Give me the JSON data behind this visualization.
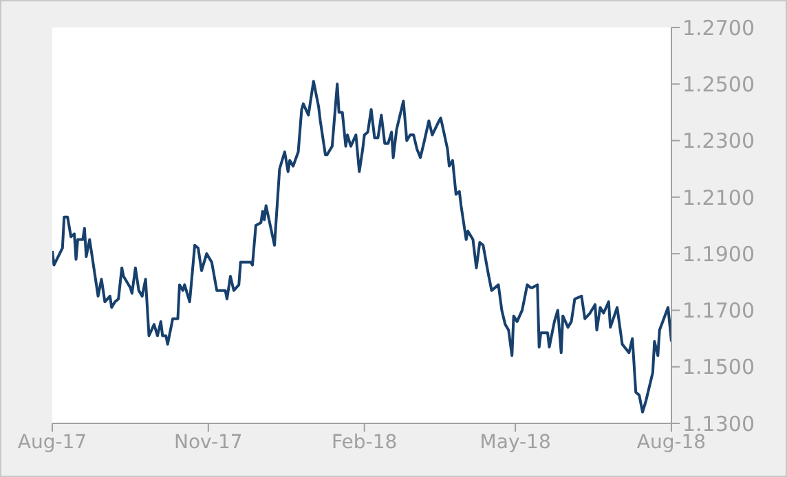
{
  "chart_data": {
    "type": "line",
    "x": [
      "2017-08-01",
      "2017-08-02",
      "2017-08-07",
      "2017-08-08",
      "2017-08-10",
      "2017-08-12",
      "2017-08-14",
      "2017-08-15",
      "2017-08-16",
      "2017-08-19",
      "2017-08-20",
      "2017-08-21",
      "2017-08-23",
      "2017-08-28",
      "2017-08-30",
      "2017-09-01",
      "2017-09-04",
      "2017-09-05",
      "2017-09-07",
      "2017-09-09",
      "2017-09-11",
      "2017-09-12",
      "2017-09-16",
      "2017-09-17",
      "2017-09-19",
      "2017-09-21",
      "2017-09-23",
      "2017-09-25",
      "2017-09-27",
      "2017-09-30",
      "2017-10-02",
      "2017-10-04",
      "2017-10-05",
      "2017-10-07",
      "2017-10-08",
      "2017-10-11",
      "2017-10-14",
      "2017-10-15",
      "2017-10-17",
      "2017-10-18",
      "2017-10-21",
      "2017-10-24",
      "2017-10-26",
      "2017-10-28",
      "2017-10-31",
      "2017-11-03",
      "2017-11-06",
      "2017-11-11",
      "2017-11-12",
      "2017-11-14",
      "2017-11-16",
      "2017-11-19",
      "2017-11-20",
      "2017-11-24",
      "2017-11-26",
      "2017-11-27",
      "2017-11-29",
      "2017-12-02",
      "2017-12-03",
      "2017-12-04",
      "2017-12-05",
      "2017-12-10",
      "2017-12-13",
      "2017-12-16",
      "2017-12-18",
      "2017-12-19",
      "2017-12-21",
      "2017-12-24",
      "2017-12-26",
      "2017-12-27",
      "2017-12-30",
      "2018-01-02",
      "2018-01-05",
      "2018-01-06",
      "2018-01-09",
      "2018-01-10",
      "2018-01-13",
      "2018-01-16",
      "2018-01-17",
      "2018-01-19",
      "2018-01-21",
      "2018-01-22",
      "2018-01-24",
      "2018-01-27",
      "2018-01-29",
      "2018-01-31",
      "2018-02-01",
      "2018-02-03",
      "2018-02-05",
      "2018-02-07",
      "2018-02-09",
      "2018-02-11",
      "2018-02-13",
      "2018-02-15",
      "2018-02-17",
      "2018-02-18",
      "2018-02-20",
      "2018-02-24",
      "2018-02-26",
      "2018-02-28",
      "2018-03-02",
      "2018-03-04",
      "2018-03-06",
      "2018-03-08",
      "2018-03-11",
      "2018-03-13",
      "2018-03-17",
      "2018-03-18",
      "2018-03-22",
      "2018-03-23",
      "2018-03-25",
      "2018-03-27",
      "2018-03-29",
      "2018-03-30",
      "2018-04-02",
      "2018-04-03",
      "2018-04-06",
      "2018-04-08",
      "2018-04-10",
      "2018-04-12",
      "2018-04-15",
      "2018-04-17",
      "2018-04-21",
      "2018-04-23",
      "2018-04-25",
      "2018-04-27",
      "2018-04-29",
      "2018-04-30",
      "2018-05-02",
      "2018-05-05",
      "2018-05-08",
      "2018-05-10",
      "2018-05-11",
      "2018-05-14",
      "2018-05-15",
      "2018-05-16",
      "2018-05-20",
      "2018-05-21",
      "2018-05-24",
      "2018-05-26",
      "2018-05-28",
      "2018-05-29",
      "2018-06-01",
      "2018-06-03",
      "2018-06-05",
      "2018-06-09",
      "2018-06-11",
      "2018-06-14",
      "2018-06-17",
      "2018-06-18",
      "2018-06-20",
      "2018-06-22",
      "2018-06-25",
      "2018-06-26",
      "2018-06-30",
      "2018-07-03",
      "2018-07-07",
      "2018-07-09",
      "2018-07-11",
      "2018-07-13",
      "2018-07-15",
      "2018-07-17",
      "2018-07-19",
      "2018-07-21",
      "2018-07-22",
      "2018-07-24",
      "2018-07-25",
      "2018-07-30",
      "2018-08-01"
    ],
    "series": [
      {
        "color": "#17406d",
        "values": [
          1.191,
          1.186,
          1.192,
          1.203,
          1.203,
          1.196,
          1.197,
          1.188,
          1.195,
          1.195,
          1.199,
          1.189,
          1.195,
          1.175,
          1.181,
          1.173,
          1.175,
          1.171,
          1.173,
          1.174,
          1.185,
          1.182,
          1.178,
          1.176,
          1.185,
          1.177,
          1.175,
          1.181,
          1.161,
          1.165,
          1.161,
          1.166,
          1.161,
          1.161,
          1.158,
          1.167,
          1.167,
          1.179,
          1.177,
          1.179,
          1.173,
          1.193,
          1.192,
          1.184,
          1.19,
          1.187,
          1.177,
          1.177,
          1.174,
          1.182,
          1.177,
          1.179,
          1.187,
          1.187,
          1.187,
          1.186,
          1.2,
          1.201,
          1.205,
          1.202,
          1.207,
          1.193,
          1.22,
          1.226,
          1.219,
          1.223,
          1.221,
          1.226,
          1.241,
          1.243,
          1.239,
          1.251,
          1.242,
          1.237,
          1.225,
          1.225,
          1.228,
          1.25,
          1.24,
          1.24,
          1.228,
          1.232,
          1.228,
          1.232,
          1.219,
          1.227,
          1.232,
          1.233,
          1.241,
          1.231,
          1.231,
          1.239,
          1.229,
          1.229,
          1.233,
          1.224,
          1.234,
          1.244,
          1.23,
          1.232,
          1.232,
          1.227,
          1.224,
          1.229,
          1.237,
          1.232,
          1.237,
          1.238,
          1.227,
          1.221,
          1.223,
          1.211,
          1.212,
          1.207,
          1.195,
          1.198,
          1.195,
          1.185,
          1.194,
          1.193,
          1.183,
          1.177,
          1.179,
          1.17,
          1.165,
          1.163,
          1.154,
          1.168,
          1.166,
          1.17,
          1.179,
          1.178,
          1.178,
          1.179,
          1.157,
          1.162,
          1.162,
          1.157,
          1.166,
          1.17,
          1.155,
          1.168,
          1.164,
          1.166,
          1.174,
          1.175,
          1.167,
          1.169,
          1.172,
          1.163,
          1.171,
          1.169,
          1.173,
          1.164,
          1.171,
          1.158,
          1.155,
          1.16,
          1.141,
          1.14,
          1.134,
          1.138,
          1.143,
          1.148,
          1.159,
          1.154,
          1.163,
          1.171,
          1.159
        ]
      }
    ],
    "xlim": [
      "2017-08-01",
      "2018-08-01"
    ],
    "xticks": [
      {
        "value": "2017-08-01",
        "label": "Aug-17"
      },
      {
        "value": "2017-11-01",
        "label": "Nov-17"
      },
      {
        "value": "2018-02-01",
        "label": "Feb-18"
      },
      {
        "value": "2018-05-01",
        "label": "May-18"
      },
      {
        "value": "2018-08-01",
        "label": "Aug-18"
      }
    ],
    "ylim": [
      1.13,
      1.27
    ],
    "yticks": [
      {
        "value": 1.13,
        "label": "1.1300"
      },
      {
        "value": 1.15,
        "label": "1.1500"
      },
      {
        "value": 1.17,
        "label": "1.1700"
      },
      {
        "value": 1.19,
        "label": "1.1900"
      },
      {
        "value": 1.21,
        "label": "1.2100"
      },
      {
        "value": 1.23,
        "label": "1.2300"
      },
      {
        "value": 1.25,
        "label": "1.2500"
      },
      {
        "value": 1.27,
        "label": "1.2700"
      }
    ],
    "grid": false,
    "legend": false,
    "marker": "none",
    "line_style": "solid"
  }
}
